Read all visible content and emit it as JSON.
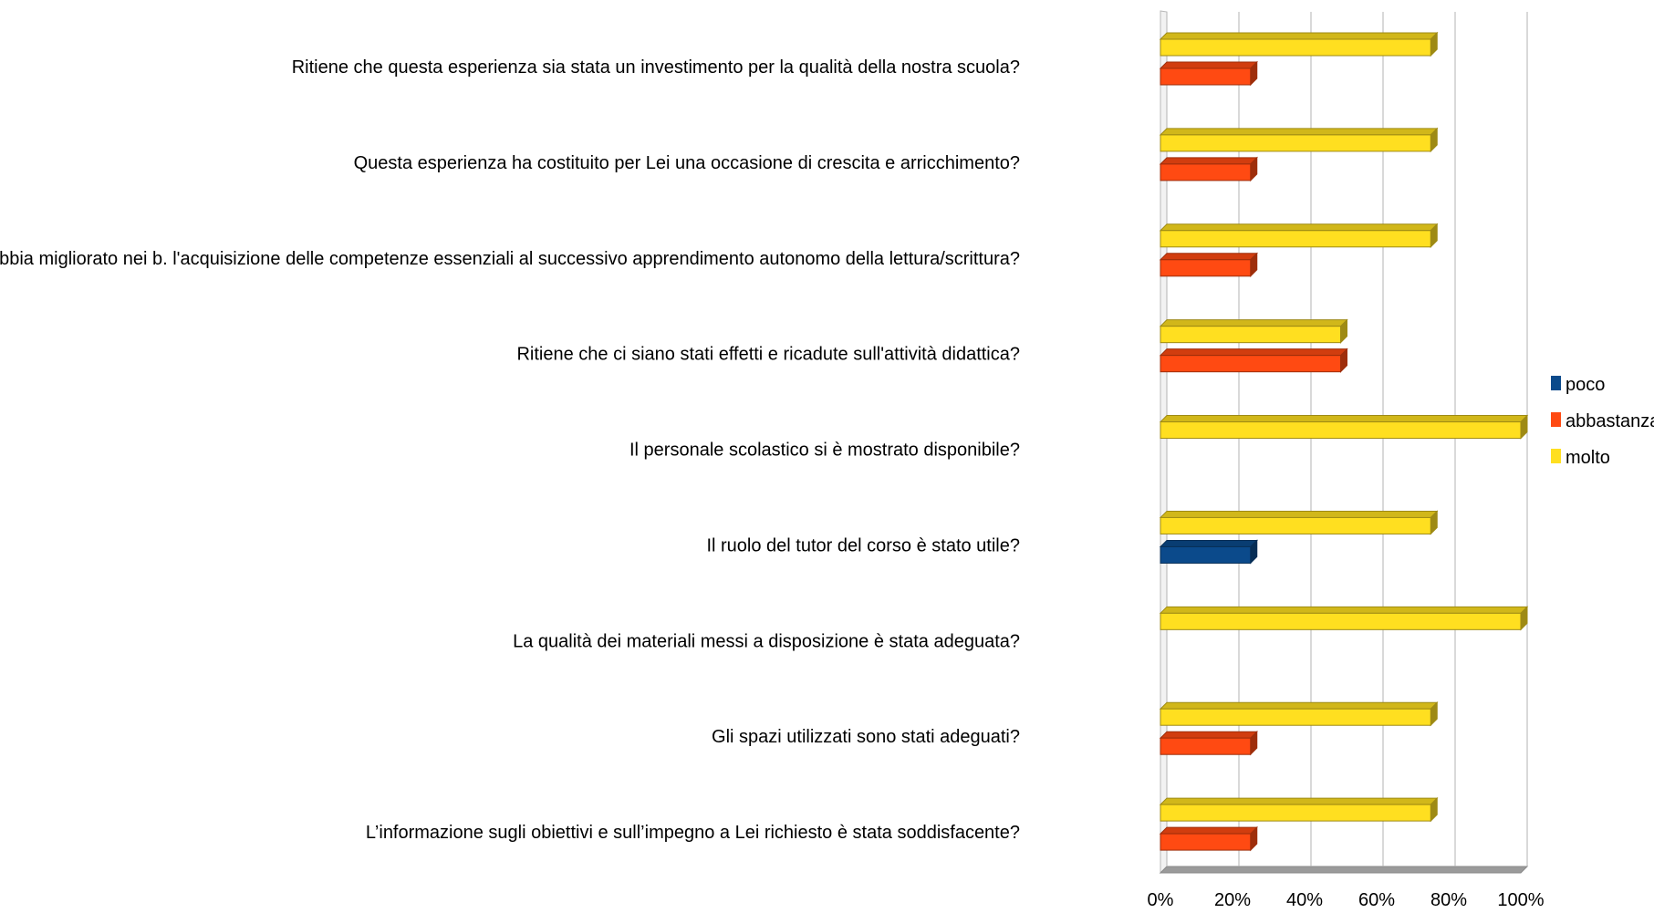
{
  "chart_data": {
    "type": "bar",
    "orientation": "horizontal",
    "categories": [
      "Ritiene che questa esperienza sia stata un investimento per la qualità della nostra scuola?",
      "Questa esperienza ha costituito per Lei una occasione di crescita e arricchimento?",
      "Ritiene che il Pon abbia migliorato nei b. l'acquisizione delle competenze essenziali al successivo apprendimento autonomo della lettura/scrittura?",
      "Ritiene che ci siano stati effetti e ricadute sull'attività didattica?",
      "Il personale scolastico si è mostrato disponibile?",
      "Il ruolo del tutor del corso è stato utile?",
      "La qualità dei materiali messi a disposizione è stata adeguata?",
      "Gli spazi utilizzati sono stati adeguati?",
      "L’informazione sugli obiettivi e sull’impegno a Lei richiesto è stata soddisfacente?"
    ],
    "series": [
      {
        "name": "poco",
        "color": "#0b4a8b",
        "values": [
          0,
          0,
          0,
          0,
          0,
          25,
          0,
          0,
          0
        ]
      },
      {
        "name": "abbastanza",
        "color": "#ff4a12",
        "values": [
          25,
          25,
          25,
          50,
          0,
          0,
          0,
          25,
          25
        ]
      },
      {
        "name": "molto",
        "color": "#ffdf20",
        "values": [
          75,
          75,
          75,
          50,
          100,
          75,
          100,
          75,
          75
        ]
      }
    ],
    "x_ticks": [
      "0%",
      "20%",
      "40%",
      "60%",
      "80%",
      "100%"
    ],
    "xlim": [
      0,
      100
    ],
    "grid": true,
    "legend_position": "right",
    "style": "3d"
  }
}
